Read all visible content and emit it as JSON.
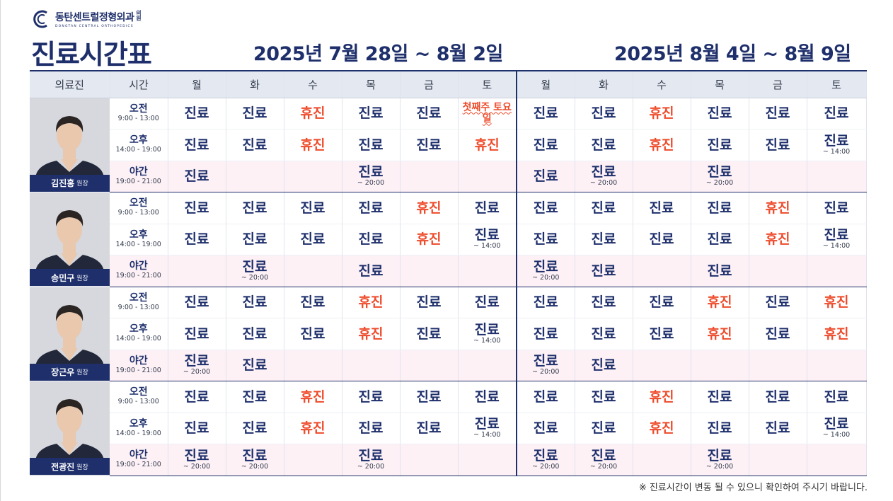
{
  "logo": {
    "name": "동탄센트럴정형외과",
    "suffix": "의원",
    "english": "DONGTAN CENTRAL ORTHOPEDICS",
    "icon": "c-logo-icon"
  },
  "title": "진료시간표",
  "weeks": [
    {
      "title": "2025년 7월 28일 ~ 8월 2일"
    },
    {
      "title": "2025년 8월 4일 ~ 8월 9일"
    }
  ],
  "header": {
    "doctor": "의료진",
    "time": "시간",
    "days": [
      "월",
      "화",
      "수",
      "목",
      "금",
      "토",
      "월",
      "화",
      "수",
      "목",
      "금",
      "토"
    ]
  },
  "slots": [
    {
      "label": "오전",
      "range": "9:00 - 13:00"
    },
    {
      "label": "오후",
      "range": "14:00 - 19:00"
    },
    {
      "label": "야간",
      "range": "19:00 - 21:00"
    }
  ],
  "colors": {
    "navy": "#1e2f6b",
    "closed": "#ee4b2b",
    "night_bg": "#fdf1f6"
  },
  "doctors": [
    {
      "name": "김진홍",
      "title": "원장",
      "rows": [
        [
          {
            "t": "진료"
          },
          {
            "t": "진료"
          },
          {
            "t": "휴진",
            "c": "h"
          },
          {
            "t": "진료"
          },
          {
            "t": "진료"
          },
          {
            "t": "",
            "n": "첫째주 토요일"
          },
          {
            "t": "진료"
          },
          {
            "t": "진료"
          },
          {
            "t": "휴진",
            "c": "h"
          },
          {
            "t": "진료"
          },
          {
            "t": "진료"
          },
          {
            "t": "진료"
          }
        ],
        [
          {
            "t": "진료"
          },
          {
            "t": "진료"
          },
          {
            "t": "휴진",
            "c": "h"
          },
          {
            "t": "진료"
          },
          {
            "t": "진료"
          },
          {
            "t": "휴진",
            "c": "h"
          },
          {
            "t": "진료"
          },
          {
            "t": "진료"
          },
          {
            "t": "휴진",
            "c": "h"
          },
          {
            "t": "진료"
          },
          {
            "t": "진료"
          },
          {
            "t": "진료",
            "s": "~ 14:00"
          }
        ],
        [
          {
            "t": "진료"
          },
          {
            "t": ""
          },
          {
            "t": ""
          },
          {
            "t": "진료",
            "s": "~ 20:00"
          },
          {
            "t": ""
          },
          {
            "t": ""
          },
          {
            "t": "진료"
          },
          {
            "t": "진료",
            "s": "~ 20:00"
          },
          {
            "t": ""
          },
          {
            "t": "진료",
            "s": "~ 20:00"
          },
          {
            "t": ""
          },
          {
            "t": ""
          }
        ]
      ]
    },
    {
      "name": "송민구",
      "title": "원장",
      "rows": [
        [
          {
            "t": "진료"
          },
          {
            "t": "진료"
          },
          {
            "t": "진료"
          },
          {
            "t": "진료"
          },
          {
            "t": "휴진",
            "c": "h"
          },
          {
            "t": "진료"
          },
          {
            "t": "진료"
          },
          {
            "t": "진료"
          },
          {
            "t": "진료"
          },
          {
            "t": "진료"
          },
          {
            "t": "휴진",
            "c": "h"
          },
          {
            "t": "진료"
          }
        ],
        [
          {
            "t": "진료"
          },
          {
            "t": "진료"
          },
          {
            "t": "진료"
          },
          {
            "t": "진료"
          },
          {
            "t": "휴진",
            "c": "h"
          },
          {
            "t": "진료",
            "s": "~ 14:00"
          },
          {
            "t": "진료"
          },
          {
            "t": "진료"
          },
          {
            "t": "진료"
          },
          {
            "t": "진료"
          },
          {
            "t": "휴진",
            "c": "h"
          },
          {
            "t": "진료",
            "s": "~ 14:00"
          }
        ],
        [
          {
            "t": ""
          },
          {
            "t": "진료",
            "s": "~ 20:00"
          },
          {
            "t": ""
          },
          {
            "t": "진료"
          },
          {
            "t": ""
          },
          {
            "t": ""
          },
          {
            "t": "진료",
            "s": "~ 20:00"
          },
          {
            "t": "진료"
          },
          {
            "t": ""
          },
          {
            "t": "진료"
          },
          {
            "t": ""
          },
          {
            "t": ""
          }
        ]
      ]
    },
    {
      "name": "장근우",
      "title": "원장",
      "rows": [
        [
          {
            "t": "진료"
          },
          {
            "t": "진료"
          },
          {
            "t": "진료"
          },
          {
            "t": "휴진",
            "c": "h"
          },
          {
            "t": "진료"
          },
          {
            "t": "진료"
          },
          {
            "t": "진료"
          },
          {
            "t": "진료"
          },
          {
            "t": "진료"
          },
          {
            "t": "휴진",
            "c": "h"
          },
          {
            "t": "진료"
          },
          {
            "t": "휴진",
            "c": "h"
          }
        ],
        [
          {
            "t": "진료"
          },
          {
            "t": "진료"
          },
          {
            "t": "진료"
          },
          {
            "t": "휴진",
            "c": "h"
          },
          {
            "t": "진료"
          },
          {
            "t": "진료",
            "s": "~ 14:00"
          },
          {
            "t": "진료"
          },
          {
            "t": "진료"
          },
          {
            "t": "진료"
          },
          {
            "t": "휴진",
            "c": "h"
          },
          {
            "t": "진료"
          },
          {
            "t": "휴진",
            "c": "h"
          }
        ],
        [
          {
            "t": "진료",
            "s": "~ 20:00"
          },
          {
            "t": "진료"
          },
          {
            "t": ""
          },
          {
            "t": ""
          },
          {
            "t": ""
          },
          {
            "t": ""
          },
          {
            "t": "진료",
            "s": "~ 20:00"
          },
          {
            "t": "진료"
          },
          {
            "t": ""
          },
          {
            "t": ""
          },
          {
            "t": ""
          },
          {
            "t": ""
          }
        ]
      ]
    },
    {
      "name": "전광진",
      "title": "원장",
      "rows": [
        [
          {
            "t": "진료"
          },
          {
            "t": "진료"
          },
          {
            "t": "휴진",
            "c": "h"
          },
          {
            "t": "진료"
          },
          {
            "t": "진료"
          },
          {
            "t": "진료"
          },
          {
            "t": "진료"
          },
          {
            "t": "진료"
          },
          {
            "t": "휴진",
            "c": "h"
          },
          {
            "t": "진료"
          },
          {
            "t": "진료"
          },
          {
            "t": "진료"
          }
        ],
        [
          {
            "t": "진료"
          },
          {
            "t": "진료"
          },
          {
            "t": "휴진",
            "c": "h"
          },
          {
            "t": "진료"
          },
          {
            "t": "진료"
          },
          {
            "t": "진료",
            "s": "~ 14:00"
          },
          {
            "t": "진료"
          },
          {
            "t": "진료"
          },
          {
            "t": "휴진",
            "c": "h"
          },
          {
            "t": "진료"
          },
          {
            "t": "진료"
          },
          {
            "t": "진료",
            "s": "~ 14:00"
          }
        ],
        [
          {
            "t": "진료",
            "s": "~ 20:00"
          },
          {
            "t": "진료",
            "s": "~ 20:00"
          },
          {
            "t": ""
          },
          {
            "t": "진료",
            "s": "~ 20:00"
          },
          {
            "t": ""
          },
          {
            "t": ""
          },
          {
            "t": "진료",
            "s": "~ 20:00"
          },
          {
            "t": "진료",
            "s": "~ 20:00"
          },
          {
            "t": ""
          },
          {
            "t": "진료",
            "s": "~ 20:00"
          },
          {
            "t": ""
          },
          {
            "t": ""
          }
        ]
      ]
    }
  ],
  "footer": "※ 진료시간이 변동 될 수 있으니 확인하여 주시기 바랍니다."
}
